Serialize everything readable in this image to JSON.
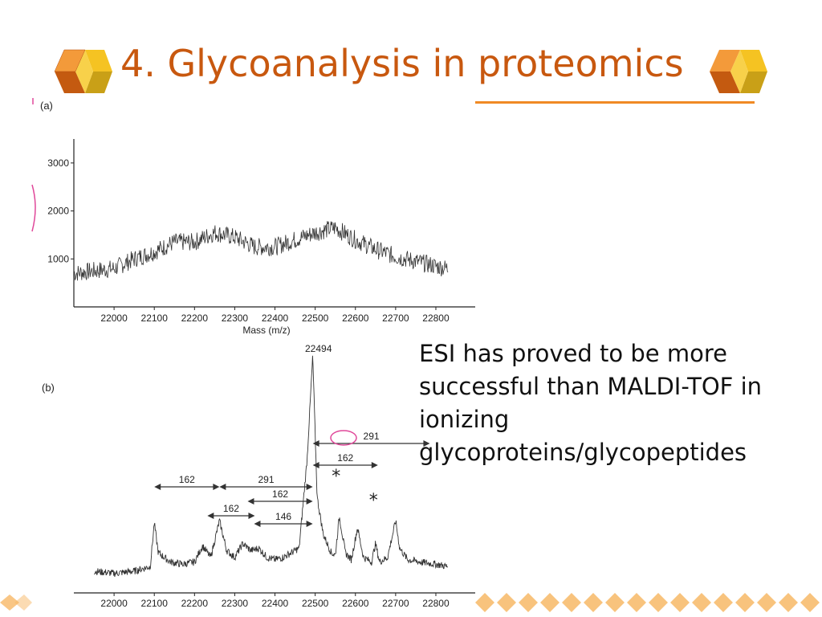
{
  "slide": {
    "title": "4. Glycoanalysis in proteomics",
    "body": "ESI has proved to be more successful than MALDI-TOF in ionizing glycoproteins/glycopeptides"
  },
  "colors": {
    "title": "#C8580F",
    "underline": "#F08A24",
    "cube_orange": "#F39A3A",
    "cube_dark": "#C45A10",
    "cube_yellow": "#F5C322",
    "cube_olive": "#C9A017",
    "footer_diamond": "#F7B866",
    "annotation_pink": "#E0489A"
  },
  "icons": [
    "hex-cube-logo-icon",
    "diamond-strip-icon"
  ],
  "chart_data": [
    {
      "type": "line",
      "panel_label": "(a)",
      "xlabel": "Mass (m/z)",
      "ylabel": "",
      "x_ticks": [
        "22000",
        "22100",
        "22200",
        "22300",
        "22400",
        "22500",
        "22600",
        "22700",
        "22800"
      ],
      "y_ticks": [
        "1000",
        "2000",
        "3000"
      ],
      "xlim": [
        21900,
        22830
      ],
      "ylim": [
        0,
        3500
      ],
      "series": [
        {
          "x": [
            21900,
            21950,
            22000,
            22050,
            22100,
            22150,
            22200,
            22250,
            22300,
            22350,
            22400,
            22450,
            22500,
            22550,
            22600,
            22650,
            22700,
            22750,
            22800,
            22830
          ],
          "values": [
            700,
            750,
            800,
            1000,
            1150,
            1350,
            1350,
            1550,
            1450,
            1250,
            1250,
            1400,
            1550,
            1650,
            1400,
            1200,
            1050,
            950,
            850,
            800
          ]
        }
      ]
    },
    {
      "type": "line",
      "panel_label": "(b)",
      "xlabel": "",
      "ylabel": "",
      "x_ticks": [
        "22000",
        "22100",
        "22200",
        "22300",
        "22400",
        "22500",
        "22600",
        "22700",
        "22800"
      ],
      "xlim": [
        21900,
        22830
      ],
      "ylim": [
        0,
        100
      ],
      "peak_label": "22494",
      "annotations": [
        {
          "label": "162",
          "from": 22100,
          "to": 22262
        },
        {
          "label": "291",
          "from": 22262,
          "to": 22494
        },
        {
          "label": "162",
          "from": 22232,
          "to": 22350
        },
        {
          "label": "162",
          "from": 22332,
          "to": 22494
        },
        {
          "label": "146",
          "from": 22348,
          "to": 22494
        },
        {
          "label": "162",
          "from": 22494,
          "to": 22656
        },
        {
          "label": "291",
          "from": 22494,
          "to": 22785
        }
      ],
      "markers": [
        "*",
        "*"
      ],
      "series": [
        {
          "x": [
            21900,
            21950,
            22000,
            22050,
            22090,
            22100,
            22110,
            22140,
            22170,
            22200,
            22220,
            22240,
            22262,
            22280,
            22300,
            22320,
            22340,
            22360,
            22380,
            22400,
            22420,
            22440,
            22460,
            22480,
            22494,
            22505,
            22520,
            22540,
            22550,
            22560,
            22575,
            22590,
            22605,
            22620,
            22640,
            22650,
            22660,
            22680,
            22700,
            22710,
            22730,
            22760,
            22800,
            22830
          ],
          "values": [
            8,
            6,
            5,
            6,
            8,
            27,
            14,
            10,
            9,
            10,
            17,
            12,
            28,
            15,
            12,
            18,
            15,
            16,
            12,
            11,
            12,
            14,
            16,
            55,
            100,
            38,
            22,
            14,
            13,
            30,
            14,
            11,
            25,
            12,
            10,
            18,
            10,
            12,
            28,
            16,
            11,
            10,
            9,
            8
          ]
        }
      ]
    }
  ]
}
